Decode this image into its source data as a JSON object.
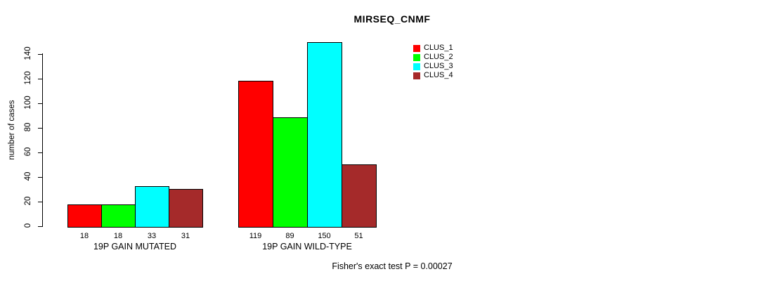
{
  "chart_data": {
    "type": "bar",
    "title": "MIRSEQ_CNMF",
    "ylabel": "number of cases",
    "xlabel": "",
    "categories": [
      "19P GAIN MUTATED",
      "19P GAIN WILD-TYPE"
    ],
    "series": [
      {
        "name": "CLUS_1",
        "color": "#ff0000",
        "values": [
          18,
          119
        ]
      },
      {
        "name": "CLUS_2",
        "color": "#00ff00",
        "values": [
          18,
          89
        ]
      },
      {
        "name": "CLUS_3",
        "color": "#00ffff",
        "values": [
          33,
          150
        ]
      },
      {
        "name": "CLUS_4",
        "color": "#a52a2a",
        "values": [
          31,
          51
        ]
      }
    ],
    "yticks": [
      0,
      20,
      40,
      60,
      80,
      100,
      120,
      140
    ],
    "ylim": [
      0,
      140
    ],
    "bar_value_labels": true,
    "grid": false,
    "legend_position": "top-right",
    "annotation": "Fisher's exact test P = 0.00027"
  },
  "style": {
    "background": "#ffffff",
    "bar_border": "#000000",
    "axis_color": "#000000"
  }
}
